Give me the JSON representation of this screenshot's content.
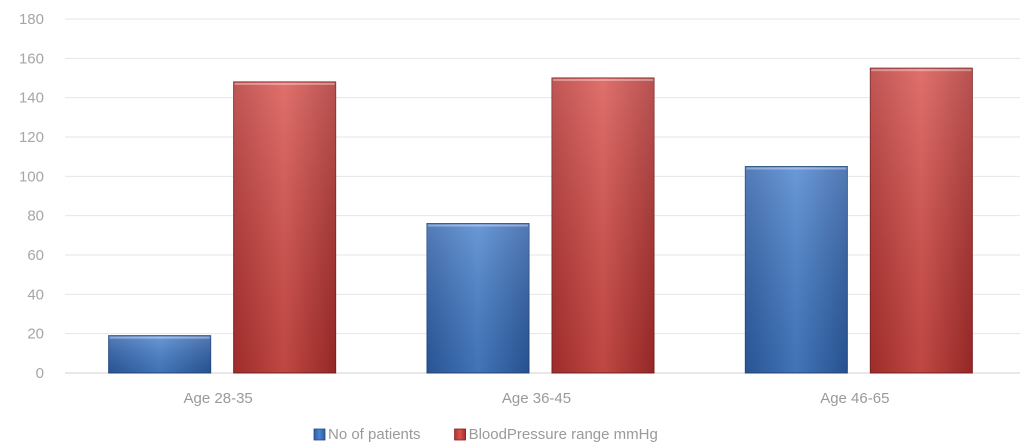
{
  "chart_data": {
    "type": "bar",
    "categories": [
      "Age 28-35",
      "Age 36-45",
      "Age 46-65"
    ],
    "series": [
      {
        "name": "No of patients",
        "values": [
          19,
          76,
          105
        ],
        "color": "#3f74c0"
      },
      {
        "name": "BloodPressure range mmHg",
        "values": [
          148,
          150,
          155
        ],
        "color": "#c9403c"
      }
    ],
    "ylim": [
      0,
      180
    ],
    "yticks": [
      "0",
      "20",
      "40",
      "60",
      "80",
      "100",
      "120",
      "140",
      "160",
      "180"
    ],
    "grid": true,
    "legend": "bottom"
  }
}
